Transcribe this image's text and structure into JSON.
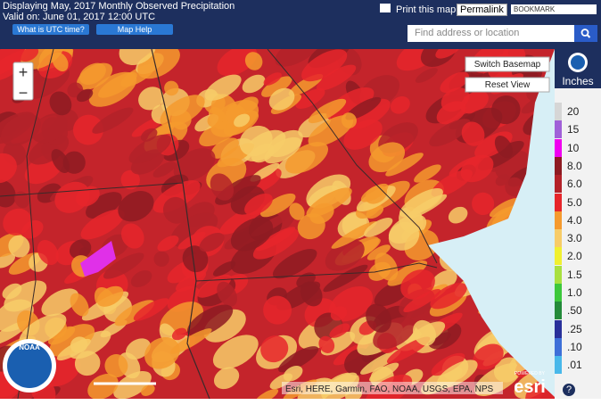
{
  "header": {
    "title": "Displaying May, 2017 Monthly Observed Precipitation",
    "valid": "Valid on: June 01, 2017 12:00 UTC",
    "utc_button": "What is UTC time?",
    "help_button": "Map Help",
    "print": "Print this map",
    "permalink": "Permalink",
    "bookmark": "BOOKMARK",
    "search_placeholder": "Find address or location"
  },
  "map": {
    "switch_basemap": "Switch Basemap",
    "reset_view": "Reset View",
    "zoom_in": "+",
    "zoom_out": "−",
    "attribution": "Esri, HERE, Garmin, FAO, NOAA, USGS, EPA, NPS",
    "noaa": "NOAA",
    "esri_powered": "POWERED BY",
    "esri": "esri"
  },
  "legend": {
    "title": "Inches",
    "help": "?",
    "items": [
      {
        "label": "20",
        "color": "#d6d6d6"
      },
      {
        "label": "15",
        "color": "#a060d8"
      },
      {
        "label": "10",
        "color": "#f000f0"
      },
      {
        "label": "8.0",
        "color": "#8e1b22"
      },
      {
        "label": "6.0",
        "color": "#b32229"
      },
      {
        "label": "5.0",
        "color": "#e6262b"
      },
      {
        "label": "4.0",
        "color": "#f59a2e"
      },
      {
        "label": "3.0",
        "color": "#f7cc68"
      },
      {
        "label": "2.0",
        "color": "#f0f030"
      },
      {
        "label": "1.5",
        "color": "#a8e040"
      },
      {
        "label": "1.0",
        "color": "#3cc83c"
      },
      {
        "label": ".50",
        "color": "#238a3a"
      },
      {
        "label": ".25",
        "color": "#28309a"
      },
      {
        "label": ".10",
        "color": "#3d6fd8"
      },
      {
        "label": ".01",
        "color": "#48b8ea"
      }
    ]
  }
}
